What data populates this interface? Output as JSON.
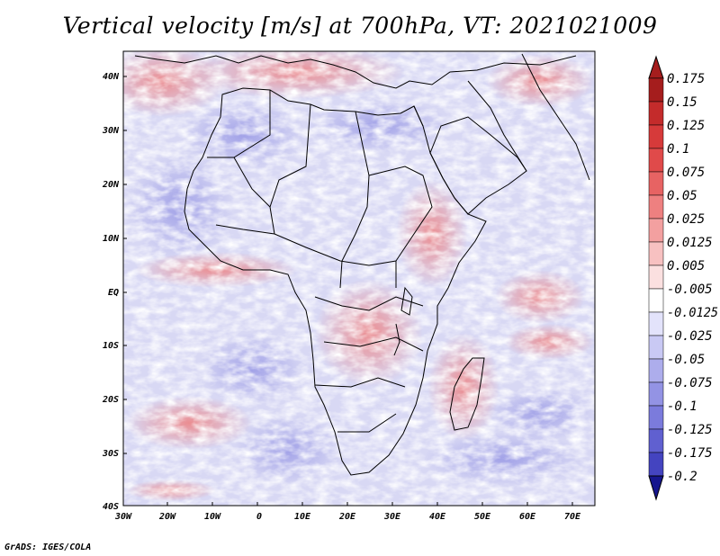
{
  "title": "Vertical velocity [m/s] at 700hPa, VT: 2021021009",
  "footer": "GrADS: IGES/COLA",
  "map": {
    "lat_labels": [
      "40N",
      "30N",
      "20N",
      "10N",
      "EQ",
      "10S",
      "20S",
      "30S",
      "40S"
    ],
    "lon_labels": [
      "30W",
      "20W",
      "10W",
      "0",
      "10E",
      "20E",
      "30E",
      "40E",
      "50E",
      "60E",
      "70E"
    ]
  },
  "colorbar": {
    "levels": [
      "0.175",
      "0.15",
      "0.125",
      "0.1",
      "0.075",
      "0.05",
      "0.025",
      "0.0125",
      "0.005",
      "-0.005",
      "-0.0125",
      "-0.025",
      "-0.05",
      "-0.075",
      "-0.1",
      "-0.125",
      "-0.175",
      "-0.2"
    ],
    "colors": [
      "#a51d1d",
      "#c42b2b",
      "#d63a3a",
      "#e04a4a",
      "#e76363",
      "#ee8080",
      "#f3a0a0",
      "#f7c1c1",
      "#fbe0e0",
      "#ffffff",
      "#e3e3fb",
      "#c9c9f4",
      "#adadec",
      "#9393e4",
      "#7b7bdc",
      "#6060d0",
      "#4444c0",
      "#2a2aa8",
      "#16168e"
    ]
  }
}
